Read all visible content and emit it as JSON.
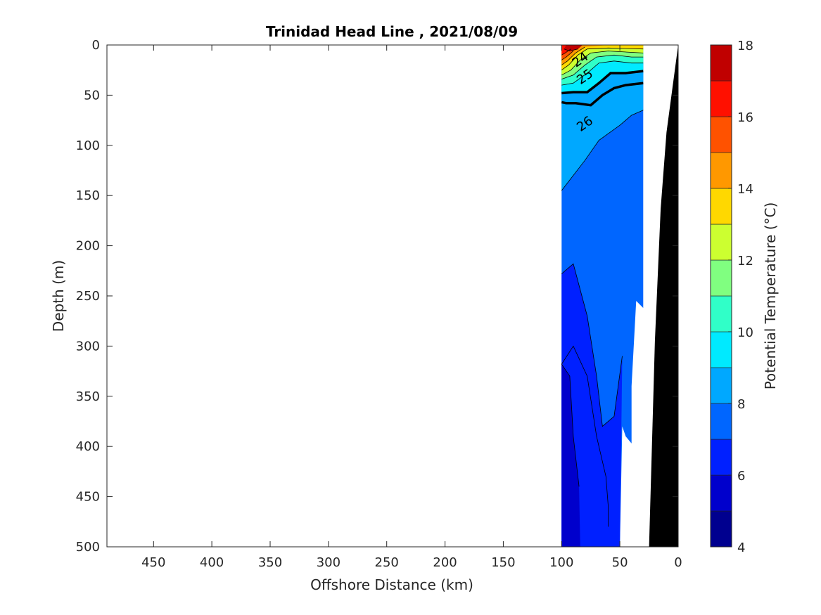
{
  "chart_data": {
    "type": "heatmap",
    "title": "Trinidad Head Line , 2021/08/09",
    "xlabel": "Offshore Distance (km)",
    "ylabel": "Depth (m)",
    "xlim": [
      490,
      0
    ],
    "ylim": [
      500,
      0
    ],
    "x_reversed": true,
    "y_reversed": true,
    "x_ticks": [
      450,
      400,
      350,
      300,
      250,
      200,
      150,
      100,
      50,
      0
    ],
    "y_ticks": [
      0,
      50,
      100,
      150,
      200,
      250,
      300,
      350,
      400,
      450,
      500
    ],
    "colorbar": {
      "label": "Potential Temperature (°C)",
      "range": [
        4,
        18
      ],
      "ticks": [
        4,
        6,
        8,
        10,
        12,
        14,
        16,
        18
      ],
      "colors": [
        "#00008f",
        "#0000cc",
        "#0020ff",
        "#0066ff",
        "#00a8ff",
        "#00eaff",
        "#30ffc8",
        "#80ff80",
        "#ccff30",
        "#ffd800",
        "#ff9800",
        "#ff5200",
        "#ff1000",
        "#c00000"
      ]
    },
    "sections": [
      {
        "level": 7,
        "polygon": [
          [
            100,
            5
          ],
          [
            88,
            0
          ],
          [
            30,
            0
          ],
          [
            30,
            262
          ],
          [
            36,
            255
          ],
          [
            40,
            340
          ],
          [
            40,
            397
          ],
          [
            45,
            390
          ],
          [
            48,
            380
          ],
          [
            50,
            500
          ],
          [
            100,
            500
          ]
        ]
      },
      {
        "level": 6.5,
        "polygon": [
          [
            100,
            228
          ],
          [
            90,
            218
          ],
          [
            78,
            270
          ],
          [
            70,
            330
          ],
          [
            65,
            380
          ],
          [
            55,
            370
          ],
          [
            48,
            310
          ],
          [
            50,
            500
          ],
          [
            100,
            500
          ]
        ]
      },
      {
        "level": 6,
        "polygon": [
          [
            100,
            318
          ],
          [
            90,
            300
          ],
          [
            78,
            330
          ],
          [
            70,
            390
          ],
          [
            62,
            430
          ],
          [
            60,
            460
          ],
          [
            60,
            480
          ],
          [
            50,
            500
          ],
          [
            100,
            500
          ]
        ]
      },
      {
        "level": 5.5,
        "polygon": [
          [
            100,
            318
          ],
          [
            93,
            330
          ],
          [
            90,
            390
          ],
          [
            85,
            440
          ],
          [
            84,
            500
          ],
          [
            100,
            500
          ]
        ]
      },
      {
        "level": 8,
        "polygon": [
          [
            100,
            145
          ],
          [
            80,
            115
          ],
          [
            68,
            95
          ],
          [
            50,
            80
          ],
          [
            40,
            70
          ],
          [
            30,
            65
          ],
          [
            30,
            0
          ],
          [
            100,
            0
          ]
        ]
      },
      {
        "level": 8.5,
        "polygon": [
          [
            100,
            57
          ],
          [
            96,
            58
          ],
          [
            88,
            58
          ],
          [
            75,
            60
          ],
          [
            65,
            50
          ],
          [
            55,
            43
          ],
          [
            45,
            40
          ],
          [
            30,
            38
          ],
          [
            30,
            0
          ],
          [
            100,
            0
          ]
        ]
      },
      {
        "level": 9,
        "polygon": [
          [
            100,
            48
          ],
          [
            90,
            47
          ],
          [
            78,
            47
          ],
          [
            68,
            38
          ],
          [
            58,
            28
          ],
          [
            45,
            28
          ],
          [
            30,
            26
          ],
          [
            30,
            0
          ],
          [
            100,
            0
          ]
        ]
      },
      {
        "level": 10,
        "polygon": [
          [
            100,
            40
          ],
          [
            90,
            38
          ],
          [
            78,
            28
          ],
          [
            68,
            18
          ],
          [
            55,
            16
          ],
          [
            40,
            18
          ],
          [
            30,
            18
          ],
          [
            30,
            0
          ],
          [
            100,
            0
          ]
        ]
      },
      {
        "level": 11,
        "polygon": [
          [
            100,
            34
          ],
          [
            90,
            30
          ],
          [
            80,
            20
          ],
          [
            70,
            12
          ],
          [
            55,
            10
          ],
          [
            40,
            12
          ],
          [
            30,
            12
          ],
          [
            30,
            0
          ],
          [
            100,
            0
          ]
        ]
      },
      {
        "level": 12,
        "polygon": [
          [
            100,
            30
          ],
          [
            92,
            25
          ],
          [
            84,
            15
          ],
          [
            75,
            8
          ],
          [
            60,
            6
          ],
          [
            30,
            8
          ],
          [
            30,
            0
          ],
          [
            100,
            0
          ]
        ]
      },
      {
        "level": 13,
        "polygon": [
          [
            100,
            25
          ],
          [
            94,
            20
          ],
          [
            86,
            10
          ],
          [
            78,
            4
          ],
          [
            60,
            3
          ],
          [
            30,
            4
          ],
          [
            30,
            0
          ],
          [
            100,
            0
          ]
        ]
      },
      {
        "level": 14,
        "polygon": [
          [
            100,
            20
          ],
          [
            95,
            16
          ],
          [
            88,
            8
          ],
          [
            80,
            2
          ],
          [
            60,
            0
          ],
          [
            100,
            0
          ]
        ]
      },
      {
        "level": 15,
        "polygon": [
          [
            100,
            15
          ],
          [
            96,
            12
          ],
          [
            90,
            6
          ],
          [
            84,
            0
          ],
          [
            100,
            0
          ]
        ]
      },
      {
        "level": 16,
        "polygon": [
          [
            100,
            10
          ],
          [
            97,
            8
          ],
          [
            92,
            4
          ],
          [
            88,
            0
          ],
          [
            100,
            0
          ]
        ]
      },
      {
        "level": 17,
        "polygon": [
          [
            98,
            4
          ],
          [
            93,
            6
          ],
          [
            86,
            4
          ],
          [
            82,
            0
          ],
          [
            96,
            0
          ]
        ]
      }
    ],
    "bottom_profile": [
      [
        0,
        0
      ],
      [
        10,
        87
      ],
      [
        15,
        163
      ],
      [
        20,
        295
      ],
      [
        25,
        500
      ]
    ],
    "contour_labels": [
      {
        "text": "24",
        "x": 82,
        "y": 18
      },
      {
        "text": "25",
        "x": 78,
        "y": 35
      },
      {
        "text": "26",
        "x": 78,
        "y": 82
      }
    ]
  }
}
